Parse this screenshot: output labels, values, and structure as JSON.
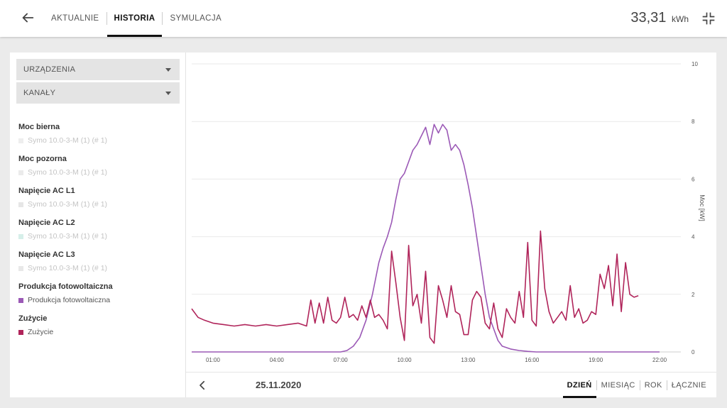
{
  "header": {
    "back_icon": "arrow-left-icon",
    "tabs": [
      {
        "label": "AKTUALNIE",
        "active": false
      },
      {
        "label": "HISTORIA",
        "active": true
      },
      {
        "label": "SYMULACJA",
        "active": false
      }
    ],
    "energy_value": "33,31",
    "energy_unit": "kWh",
    "collapse_icon": "collapse-icon"
  },
  "sidebar": {
    "dropdowns": [
      {
        "label": "URZĄDZENIA"
      },
      {
        "label": "KANAŁY"
      }
    ],
    "groups": [
      {
        "title": "Moc bierna",
        "items": [
          {
            "label": "Symo 10.0-3-M (1) (# 1)",
            "color": "#eeeeee",
            "active": false
          }
        ]
      },
      {
        "title": "Moc pozorna",
        "items": [
          {
            "label": "Symo 10.0-3-M (1) (# 1)",
            "color": "#ebebeb",
            "active": false
          }
        ]
      },
      {
        "title": "Napięcie AC L1",
        "items": [
          {
            "label": "Symo 10.0-3-M (1) (# 1)",
            "color": "#e6e6e6",
            "active": false
          }
        ]
      },
      {
        "title": "Napięcie AC L2",
        "items": [
          {
            "label": "Symo 10.0-3-M (1) (# 1)",
            "color": "#d6efe9",
            "active": false
          }
        ]
      },
      {
        "title": "Napięcie AC L3",
        "items": [
          {
            "label": "Symo 10.0-3-M (1) (# 1)",
            "color": "#e8e8e8",
            "active": false
          }
        ]
      },
      {
        "title": "Produkcja fotowoltaiczna",
        "items": [
          {
            "label": "Produkcja fotowoltaiczna",
            "color": "#9b59b6",
            "active": true
          }
        ]
      },
      {
        "title": "Zużycie",
        "items": [
          {
            "label": "Zużycie",
            "color": "#b0245a",
            "active": true
          }
        ]
      }
    ]
  },
  "footer": {
    "prev_icon": "chevron-left-icon",
    "date": "25.11.2020",
    "periods": [
      {
        "label": "DZIEŃ",
        "active": true
      },
      {
        "label": "MIESIĄC",
        "active": false
      },
      {
        "label": "ROK",
        "active": false
      },
      {
        "label": "ŁĄCZNIE",
        "active": false
      }
    ]
  },
  "chart_data": {
    "type": "line",
    "ylabel": "Moc [kW]",
    "ylim": [
      0,
      10
    ],
    "yticks": [
      0,
      2,
      4,
      6,
      8,
      10
    ],
    "xlim": [
      0.0,
      23.0
    ],
    "xticks": [
      "01:00",
      "04:00",
      "07:00",
      "10:00",
      "13:00",
      "16:00",
      "19:00",
      "22:00"
    ],
    "grid": true,
    "series": [
      {
        "name": "Produkcja fotowoltaiczna",
        "color": "#9b59b6",
        "x": [
          0.0,
          6.5,
          7.0,
          7.3,
          7.6,
          7.9,
          8.2,
          8.5,
          8.8,
          9.0,
          9.2,
          9.4,
          9.6,
          9.8,
          10.0,
          10.2,
          10.4,
          10.6,
          10.8,
          11.0,
          11.2,
          11.4,
          11.6,
          11.8,
          12.0,
          12.2,
          12.4,
          12.6,
          12.8,
          13.0,
          13.2,
          13.4,
          13.6,
          13.8,
          14.0,
          14.2,
          14.4,
          14.6,
          14.8,
          15.0,
          15.4,
          15.8,
          16.2,
          17.0,
          22.0
        ],
        "values": [
          0,
          0,
          0,
          0.05,
          0.2,
          0.5,
          1.1,
          2.0,
          3.1,
          3.6,
          4.0,
          4.5,
          5.3,
          6.0,
          6.2,
          6.6,
          7.0,
          7.2,
          7.5,
          7.8,
          7.2,
          7.9,
          7.6,
          7.9,
          7.7,
          7.0,
          7.2,
          7.0,
          6.5,
          5.8,
          5.0,
          4.0,
          3.0,
          2.0,
          1.2,
          0.8,
          0.4,
          0.2,
          0.15,
          0.1,
          0.05,
          0.02,
          0,
          0,
          0
        ]
      },
      {
        "name": "Zużycie",
        "color": "#b0245a",
        "x": [
          0.0,
          0.3,
          0.6,
          1.0,
          1.5,
          2.0,
          2.5,
          3.0,
          3.5,
          4.0,
          4.5,
          5.0,
          5.4,
          5.6,
          5.8,
          6.0,
          6.2,
          6.4,
          6.6,
          6.8,
          7.0,
          7.2,
          7.4,
          7.6,
          7.8,
          8.0,
          8.2,
          8.4,
          8.6,
          8.8,
          9.0,
          9.2,
          9.4,
          9.6,
          9.8,
          10.0,
          10.2,
          10.4,
          10.6,
          10.8,
          11.0,
          11.2,
          11.4,
          11.6,
          11.8,
          12.0,
          12.2,
          12.4,
          12.6,
          12.8,
          13.0,
          13.2,
          13.4,
          13.6,
          13.8,
          14.0,
          14.2,
          14.4,
          14.6,
          14.8,
          15.0,
          15.2,
          15.4,
          15.6,
          15.8,
          16.0,
          16.2,
          16.4,
          16.6,
          16.8,
          17.0,
          17.2,
          17.4,
          17.6,
          17.8,
          18.0,
          18.2,
          18.4,
          18.6,
          18.8,
          19.0,
          19.2,
          19.4,
          19.6,
          19.8,
          20.0,
          20.2,
          20.4,
          20.6,
          20.8,
          21.0
        ],
        "values": [
          1.5,
          1.2,
          1.1,
          1.0,
          0.95,
          0.9,
          0.95,
          0.9,
          0.95,
          0.9,
          0.95,
          1.0,
          0.9,
          1.8,
          1.0,
          1.7,
          1.0,
          1.9,
          1.1,
          1.0,
          1.2,
          1.9,
          1.2,
          1.3,
          1.1,
          1.6,
          1.2,
          1.8,
          1.2,
          1.3,
          1.1,
          0.8,
          3.5,
          2.4,
          1.2,
          0.4,
          3.7,
          1.6,
          2.0,
          1.0,
          2.8,
          0.5,
          0.3,
          2.3,
          1.8,
          1.2,
          2.3,
          1.4,
          1.3,
          0.6,
          0.6,
          1.8,
          2.1,
          1.9,
          1.0,
          0.8,
          1.7,
          0.8,
          0.5,
          1.5,
          1.2,
          1.0,
          2.1,
          1.2,
          3.8,
          1.1,
          0.9,
          4.2,
          2.2,
          1.4,
          1.0,
          1.2,
          1.4,
          1.1,
          2.3,
          1.2,
          1.5,
          1.0,
          1.1,
          1.4,
          1.3,
          2.7,
          2.2,
          3.0,
          1.6,
          3.4,
          1.4,
          3.1,
          2.0,
          1.9,
          1.95
        ]
      }
    ]
  }
}
